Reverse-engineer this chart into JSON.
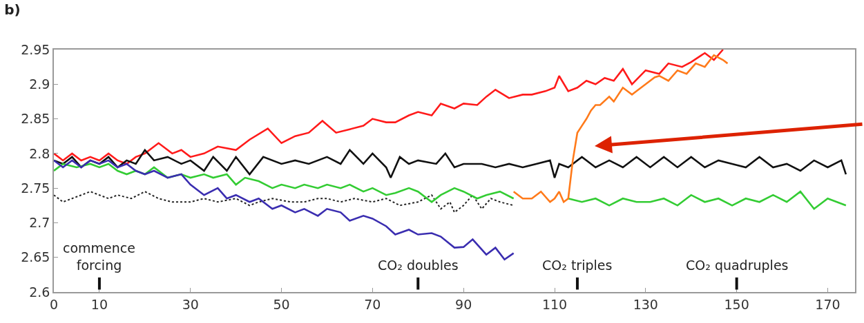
{
  "chart_data": {
    "type": "line",
    "title": "b)",
    "xlim": [
      0,
      176
    ],
    "ylim": [
      2.6,
      2.95
    ],
    "xticks": [
      0,
      10,
      30,
      50,
      70,
      90,
      110,
      130,
      150,
      170
    ],
    "yticks": [
      2.6,
      2.65,
      2.7,
      2.75,
      2.8,
      2.85,
      2.9,
      2.95
    ],
    "marker": "none",
    "series": [
      {
        "color": "#ff1a1a",
        "x": [
          0,
          2,
          4,
          6,
          8,
          10,
          12,
          14,
          16,
          18,
          20,
          23,
          26,
          28,
          30,
          33,
          36,
          40,
          43,
          47,
          50,
          53,
          56,
          59,
          62,
          65,
          68,
          70,
          73,
          75,
          78,
          80,
          83,
          85,
          88,
          90,
          93,
          95,
          97,
          100,
          103,
          105,
          108,
          110,
          111,
          113,
          115,
          117,
          119,
          121,
          123,
          125,
          127,
          130,
          133,
          135,
          138,
          140,
          143,
          145,
          147
        ],
        "values": [
          2.8,
          2.79,
          2.8,
          2.79,
          2.795,
          2.79,
          2.8,
          2.79,
          2.785,
          2.795,
          2.8,
          2.815,
          2.8,
          2.805,
          2.795,
          2.8,
          2.81,
          2.805,
          2.82,
          2.836,
          2.815,
          2.825,
          2.83,
          2.847,
          2.83,
          2.835,
          2.84,
          2.85,
          2.845,
          2.845,
          2.855,
          2.86,
          2.855,
          2.872,
          2.865,
          2.872,
          2.87,
          2.882,
          2.892,
          2.88,
          2.885,
          2.885,
          2.89,
          2.895,
          2.912,
          2.89,
          2.895,
          2.905,
          2.9,
          2.909,
          2.905,
          2.922,
          2.9,
          2.92,
          2.915,
          2.93,
          2.925,
          2.932,
          2.945,
          2.935,
          2.95
        ]
      },
      {
        "color": "#111111",
        "x": [
          0,
          2,
          4,
          6,
          8,
          10,
          12,
          14,
          16,
          18,
          20,
          22,
          25,
          28,
          30,
          33,
          35,
          38,
          40,
          43,
          46,
          50,
          53,
          56,
          60,
          63,
          65,
          68,
          70,
          73,
          74,
          76,
          78,
          80,
          84,
          86,
          88,
          90,
          94,
          97,
          100,
          103,
          106,
          109,
          110,
          111,
          113,
          116,
          119,
          122,
          125,
          128,
          131,
          134,
          137,
          140,
          143,
          146,
          149,
          152,
          155,
          158,
          161,
          164,
          167,
          170,
          173,
          174
        ],
        "values": [
          2.79,
          2.785,
          2.795,
          2.78,
          2.79,
          2.785,
          2.795,
          2.78,
          2.79,
          2.785,
          2.805,
          2.79,
          2.795,
          2.785,
          2.79,
          2.775,
          2.795,
          2.775,
          2.795,
          2.77,
          2.795,
          2.785,
          2.79,
          2.785,
          2.795,
          2.785,
          2.805,
          2.785,
          2.8,
          2.78,
          2.765,
          2.795,
          2.785,
          2.79,
          2.785,
          2.8,
          2.78,
          2.785,
          2.785,
          2.78,
          2.785,
          2.78,
          2.785,
          2.79,
          2.765,
          2.785,
          2.78,
          2.795,
          2.78,
          2.79,
          2.78,
          2.795,
          2.78,
          2.795,
          2.78,
          2.795,
          2.78,
          2.79,
          2.785,
          2.78,
          2.795,
          2.78,
          2.785,
          2.775,
          2.79,
          2.78,
          2.79,
          2.77
        ]
      },
      {
        "color": "#222222",
        "line_style": "dotted",
        "x": [
          0,
          2,
          4,
          6,
          8,
          10,
          12,
          14,
          17,
          20,
          23,
          26,
          30,
          33,
          36,
          40,
          43,
          45,
          48,
          52,
          55,
          58,
          60,
          63,
          66,
          70,
          73,
          76,
          80,
          83,
          85,
          87,
          88,
          90,
          92,
          94,
          96,
          98,
          101
        ],
        "values": [
          2.74,
          2.73,
          2.735,
          2.74,
          2.745,
          2.74,
          2.735,
          2.74,
          2.735,
          2.745,
          2.735,
          2.73,
          2.73,
          2.735,
          2.73,
          2.735,
          2.725,
          2.73,
          2.735,
          2.73,
          2.73,
          2.735,
          2.735,
          2.73,
          2.735,
          2.73,
          2.735,
          2.725,
          2.73,
          2.74,
          2.72,
          2.73,
          2.715,
          2.725,
          2.74,
          2.72,
          2.735,
          2.73,
          2.725
        ]
      },
      {
        "color": "#33cc33",
        "x": [
          0,
          2,
          5,
          8,
          10,
          12,
          14,
          16,
          18,
          20,
          22,
          25,
          28,
          30,
          33,
          35,
          38,
          40,
          42,
          45,
          48,
          50,
          53,
          55,
          58,
          60,
          63,
          65,
          68,
          70,
          73,
          75,
          78,
          80,
          83,
          85,
          88,
          90,
          93,
          95,
          98,
          101,
          103,
          113,
          116,
          119,
          122,
          125,
          128,
          131,
          134,
          137,
          140,
          143,
          146,
          149,
          152,
          155,
          158,
          161,
          164,
          167,
          170,
          172,
          174
        ],
        "values": [
          2.775,
          2.785,
          2.78,
          2.785,
          2.78,
          2.785,
          2.775,
          2.77,
          2.775,
          2.77,
          2.78,
          2.765,
          2.77,
          2.765,
          2.77,
          2.765,
          2.77,
          2.755,
          2.765,
          2.76,
          2.75,
          2.755,
          2.75,
          2.755,
          2.75,
          2.755,
          2.75,
          2.755,
          2.745,
          2.75,
          2.74,
          2.743,
          2.75,
          2.745,
          2.73,
          2.74,
          2.75,
          2.745,
          2.735,
          2.74,
          2.745,
          2.735,
          null,
          2.735,
          2.73,
          2.735,
          2.725,
          2.735,
          2.73,
          2.73,
          2.735,
          2.725,
          2.74,
          2.73,
          2.735,
          2.725,
          2.735,
          2.73,
          2.74,
          2.73,
          2.745,
          2.72,
          2.735,
          2.73,
          2.725
        ]
      },
      {
        "color": "#3a2db0",
        "x": [
          0,
          2,
          4,
          6,
          8,
          10,
          12,
          14,
          16,
          18,
          20,
          22,
          25,
          28,
          30,
          33,
          36,
          38,
          40,
          43,
          45,
          48,
          50,
          53,
          55,
          58,
          60,
          63,
          65,
          68,
          70,
          73,
          75,
          78,
          80,
          83,
          85,
          88,
          90,
          92,
          95,
          97,
          99,
          101
        ],
        "values": [
          2.79,
          2.78,
          2.79,
          2.78,
          2.79,
          2.785,
          2.79,
          2.78,
          2.785,
          2.775,
          2.77,
          2.775,
          2.765,
          2.77,
          2.755,
          2.74,
          2.75,
          2.735,
          2.74,
          2.73,
          2.735,
          2.72,
          2.725,
          2.715,
          2.72,
          2.71,
          2.72,
          2.715,
          2.703,
          2.71,
          2.706,
          2.695,
          2.683,
          2.69,
          2.683,
          2.685,
          2.68,
          2.664,
          2.665,
          2.676,
          2.654,
          2.664,
          2.647,
          2.656
        ]
      },
      {
        "color": "#ff7a1a",
        "x": [
          101,
          103,
          105,
          107,
          109,
          110,
          111,
          112,
          113,
          114,
          115,
          116,
          117,
          118,
          119,
          120,
          122,
          123,
          125,
          127,
          128,
          130,
          132,
          133,
          135,
          137,
          139,
          141,
          143,
          145,
          147,
          148
        ],
        "values": [
          2.745,
          2.735,
          2.735,
          2.745,
          2.73,
          2.735,
          2.745,
          2.73,
          2.735,
          2.79,
          2.83,
          2.84,
          2.85,
          2.862,
          2.87,
          2.87,
          2.882,
          2.875,
          2.895,
          2.885,
          2.89,
          2.9,
          2.91,
          2.912,
          2.905,
          2.92,
          2.915,
          2.93,
          2.925,
          2.942,
          2.935,
          2.93
        ]
      }
    ],
    "ref_lines": [
      {
        "axis": "x",
        "value": 10,
        "label": "commence\nforcing",
        "color": "#111111"
      },
      {
        "axis": "x",
        "value": 80,
        "label": "CO₂ doubles",
        "color": "#111111"
      },
      {
        "axis": "x",
        "value": 115,
        "label": "CO₂ triples",
        "color": "#111111"
      },
      {
        "axis": "x",
        "value": 150,
        "label": "CO₂ quadruples",
        "color": "#111111"
      }
    ]
  }
}
